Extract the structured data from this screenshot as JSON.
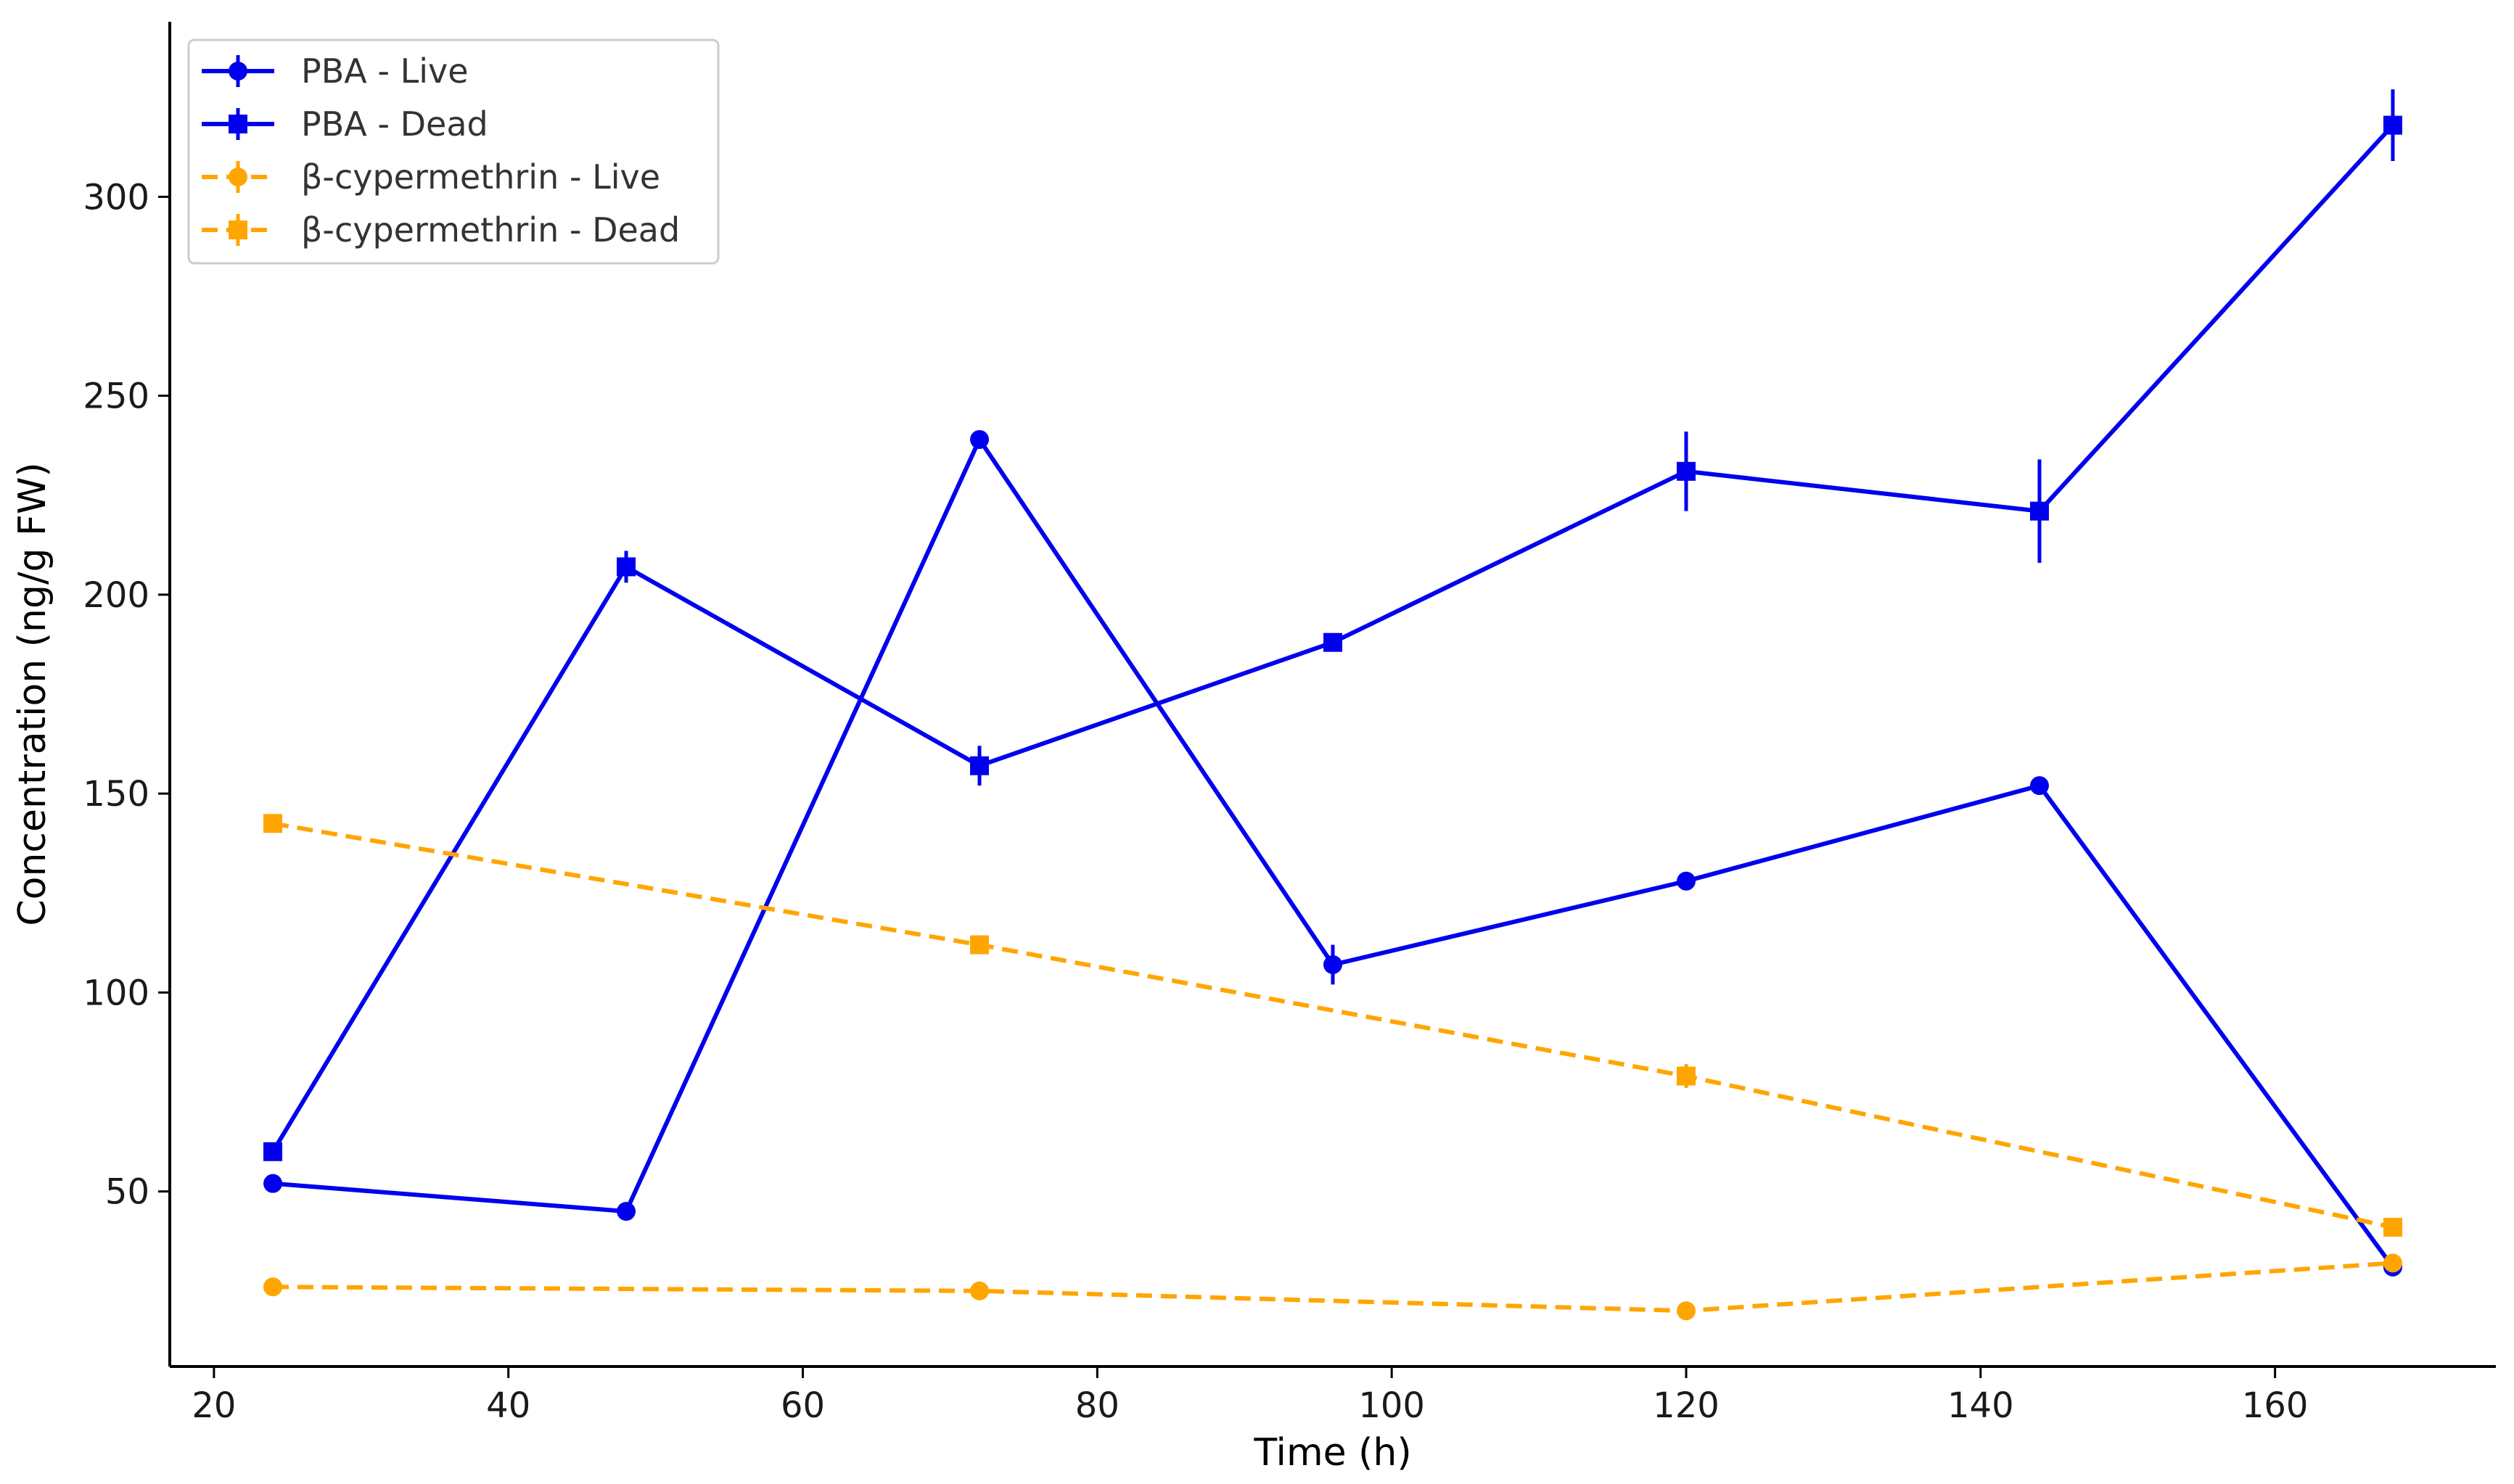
{
  "chart_data": {
    "type": "line",
    "title": "",
    "xlabel": "Time (h)",
    "ylabel": "Concentration (ng/g FW)",
    "xlim": [
      17,
      175
    ],
    "ylim": [
      6,
      344
    ],
    "xticks": [
      20,
      40,
      60,
      80,
      100,
      120,
      140,
      160
    ],
    "yticks": [
      50,
      100,
      150,
      200,
      250,
      300
    ],
    "legend_position": "top-left",
    "grid": false,
    "series": [
      {
        "name": "PBA - Live",
        "color": "#0000ee",
        "linestyle": "solid",
        "marker": "circle",
        "x": [
          24,
          48,
          72,
          96,
          120,
          144,
          168
        ],
        "y": [
          52,
          45,
          239,
          107,
          128,
          152,
          31
        ],
        "err": [
          1,
          1,
          1,
          5,
          1,
          1,
          1
        ]
      },
      {
        "name": "PBA - Dead",
        "color": "#0000ee",
        "linestyle": "solid",
        "marker": "square",
        "x": [
          24,
          72,
          120,
          144,
          168,
          48,
          96
        ],
        "y": [
          60,
          157,
          231,
          221,
          318,
          207,
          188
        ],
        "err": [
          2,
          5,
          10,
          13,
          9,
          4,
          2
        ]
      },
      {
        "name": "β-cypermethrin - Live",
        "color": "#ffa500",
        "linestyle": "dashed",
        "marker": "circle",
        "x": [
          24,
          72,
          120,
          168
        ],
        "y": [
          26,
          25,
          20,
          32
        ],
        "err": [
          1,
          1,
          1,
          1
        ]
      },
      {
        "name": "β-cypermethrin - Dead",
        "color": "#ffa500",
        "linestyle": "dashed",
        "marker": "square",
        "x": [
          24,
          72,
          120,
          168
        ],
        "y": [
          142.5,
          112,
          79,
          41
        ],
        "err": [
          2,
          1,
          3,
          1
        ]
      }
    ]
  }
}
